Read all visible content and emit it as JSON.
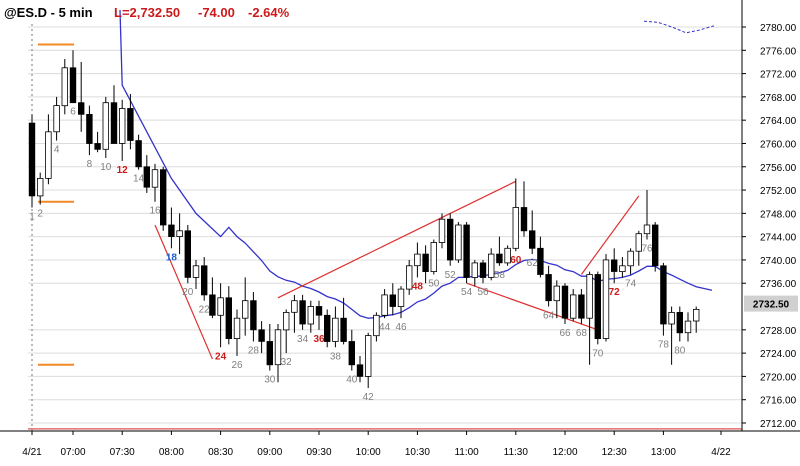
{
  "header": {
    "symbol": "@ES.D - 5 min",
    "last": "L=2,732.50",
    "change": "-74.00",
    "change_pct": "-2.64%"
  },
  "colors": {
    "background": "#ffffff",
    "grid": "#dcdcdc",
    "up_body": "#ffffff",
    "down_body": "#000000",
    "ema": "#3333cc",
    "trendline": "#e03030",
    "yesterday_level": "#f08a24",
    "bar_label_gray": "#808080",
    "bar_label_red": "#cc1a1a",
    "bar_label_blue": "#1f5fd6",
    "low_line": "#e07070",
    "price_tag_bg": "#d0d0d0"
  },
  "chart_data": {
    "type": "candlestick",
    "title": "@ES.D - 5 min",
    "ylim": [
      2710,
      2782
    ],
    "y_ticks": [
      "2780.00",
      "2776.00",
      "2772.00",
      "2768.00",
      "2764.00",
      "2760.00",
      "2756.00",
      "2752.00",
      "2748.00",
      "2744.00",
      "2740.00",
      "2736.00",
      "2732.50",
      "2728.00",
      "2724.00",
      "2720.00",
      "2716.00",
      "2712.00"
    ],
    "x_ticks": [
      "4/21",
      "07:00",
      "07:30",
      "08:00",
      "08:30",
      "09:00",
      "09:30",
      "10:00",
      "10:30",
      "11:00",
      "11:30",
      "12:00",
      "12:30",
      "13:00",
      "4/22"
    ],
    "last_price": "2732.50",
    "bars": [
      [
        2763.5,
        2765.0,
        2749.0,
        2751.0
      ],
      [
        2751.0,
        2755.0,
        2749.5,
        2754.0
      ],
      [
        2754.0,
        2765.0,
        2753.0,
        2762.0
      ],
      [
        2762.0,
        2768.0,
        2760.5,
        2766.5
      ],
      [
        2766.5,
        2774.5,
        2765.0,
        2773.0
      ],
      [
        2773.0,
        2776.0,
        2767.0,
        2767.0
      ],
      [
        2767.0,
        2774.0,
        2762.0,
        2765.0
      ],
      [
        2765.0,
        2766.5,
        2758.0,
        2760.0
      ],
      [
        2760.0,
        2762.0,
        2758.5,
        2759.0
      ],
      [
        2759.0,
        2768.0,
        2757.5,
        2767.0
      ],
      [
        2767.0,
        2770.0,
        2760.0,
        2760.0
      ],
      [
        2760.0,
        2767.5,
        2757.0,
        2766.0
      ],
      [
        2766.0,
        2768.5,
        2759.0,
        2760.5
      ],
      [
        2760.5,
        2761.5,
        2755.5,
        2756.0
      ],
      [
        2756.0,
        2758.0,
        2751.5,
        2752.5
      ],
      [
        2752.5,
        2756.5,
        2750.0,
        2755.5
      ],
      [
        2755.5,
        2756.0,
        2745.0,
        2746.0
      ],
      [
        2746.0,
        2749.0,
        2742.0,
        2744.0
      ],
      [
        2744.0,
        2748.0,
        2741.0,
        2745.0
      ],
      [
        2745.0,
        2746.0,
        2736.0,
        2737.0
      ],
      [
        2737.0,
        2740.0,
        2735.0,
        2739.0
      ],
      [
        2739.0,
        2740.5,
        2733.0,
        2734.0
      ],
      [
        2734.0,
        2737.0,
        2730.0,
        2730.5
      ],
      [
        2730.5,
        2736.0,
        2725.0,
        2733.5
      ],
      [
        2733.5,
        2735.5,
        2725.5,
        2726.5
      ],
      [
        2726.5,
        2731.5,
        2723.5,
        2730.0
      ],
      [
        2730.0,
        2737.0,
        2727.0,
        2733.0
      ],
      [
        2733.0,
        2734.5,
        2726.0,
        2728.0
      ],
      [
        2728.0,
        2729.5,
        2724.0,
        2726.0
      ],
      [
        2726.0,
        2729.0,
        2721.0,
        2722.0
      ],
      [
        2722.0,
        2729.0,
        2719.0,
        2728.0
      ],
      [
        2728.0,
        2731.5,
        2724.0,
        2731.0
      ],
      [
        2731.0,
        2734.0,
        2727.5,
        2733.0
      ],
      [
        2733.0,
        2734.0,
        2728.0,
        2729.0
      ],
      [
        2729.0,
        2733.0,
        2727.5,
        2732.0
      ],
      [
        2732.0,
        2733.0,
        2728.0,
        2730.5
      ],
      [
        2730.5,
        2731.5,
        2725.0,
        2726.0
      ],
      [
        2726.0,
        2732.0,
        2725.0,
        2730.0
      ],
      [
        2730.0,
        2733.5,
        2725.5,
        2726.0
      ],
      [
        2726.0,
        2728.0,
        2721.0,
        2722.0
      ],
      [
        2722.0,
        2723.5,
        2719.0,
        2720.0
      ],
      [
        2720.0,
        2727.5,
        2718.0,
        2727.0
      ],
      [
        2727.0,
        2731.0,
        2726.0,
        2730.5
      ],
      [
        2730.5,
        2735.0,
        2730.0,
        2734.0
      ],
      [
        2734.0,
        2736.0,
        2730.5,
        2732.0
      ],
      [
        2732.0,
        2735.5,
        2730.0,
        2735.0
      ],
      [
        2735.0,
        2740.0,
        2734.0,
        2739.0
      ],
      [
        2739.0,
        2743.0,
        2737.0,
        2741.0
      ],
      [
        2741.0,
        2742.5,
        2736.0,
        2738.0
      ],
      [
        2738.0,
        2743.5,
        2737.5,
        2743.0
      ],
      [
        2743.0,
        2748.0,
        2742.0,
        2747.0
      ],
      [
        2747.0,
        2748.0,
        2739.0,
        2740.0
      ],
      [
        2740.0,
        2746.5,
        2739.5,
        2746.0
      ],
      [
        2746.0,
        2746.5,
        2736.0,
        2737.0
      ],
      [
        2737.0,
        2740.0,
        2735.5,
        2739.5
      ],
      [
        2739.5,
        2740.0,
        2736.0,
        2737.0
      ],
      [
        2737.0,
        2742.0,
        2736.5,
        2741.0
      ],
      [
        2741.0,
        2744.0,
        2739.0,
        2739.5
      ],
      [
        2739.5,
        2742.5,
        2739.0,
        2742.0
      ],
      [
        2742.0,
        2754.0,
        2741.5,
        2749.0
      ],
      [
        2749.0,
        2753.5,
        2744.0,
        2745.0
      ],
      [
        2745.0,
        2748.5,
        2741.0,
        2742.0
      ],
      [
        2742.0,
        2744.0,
        2737.0,
        2737.5
      ],
      [
        2737.5,
        2739.0,
        2732.0,
        2733.0
      ],
      [
        2733.0,
        2736.5,
        2730.0,
        2735.5
      ],
      [
        2735.5,
        2736.0,
        2729.0,
        2730.0
      ],
      [
        2730.0,
        2735.0,
        2729.5,
        2734.0
      ],
      [
        2734.0,
        2735.0,
        2729.0,
        2730.0
      ],
      [
        2730.0,
        2738.0,
        2722.0,
        2737.5
      ],
      [
        2737.5,
        2738.0,
        2725.5,
        2726.5
      ],
      [
        2726.5,
        2741.0,
        2726.0,
        2740.0
      ],
      [
        2740.0,
        2742.0,
        2736.0,
        2738.0
      ],
      [
        2738.0,
        2740.5,
        2737.0,
        2739.0
      ],
      [
        2739.0,
        2742.0,
        2737.5,
        2741.5
      ],
      [
        2741.5,
        2745.0,
        2739.0,
        2744.5
      ],
      [
        2744.5,
        2752.0,
        2743.5,
        2746.0
      ],
      [
        2746.0,
        2746.5,
        2738.0,
        2739.0
      ],
      [
        2739.0,
        2739.5,
        2727.0,
        2729.0
      ],
      [
        2729.0,
        2732.0,
        2722.0,
        2731.0
      ],
      [
        2731.0,
        2732.0,
        2726.0,
        2727.5
      ],
      [
        2727.5,
        2731.0,
        2726.0,
        2729.5
      ],
      [
        2729.5,
        2732.0,
        2727.5,
        2731.5
      ]
    ],
    "ema": [
      2763.5,
      2762.2,
      2762.2,
      2762.6,
      2763.6,
      2764.0,
      2764.1,
      2763.7,
      2763.2,
      2763.6,
      2763.3,
      2763.6,
      2763.3,
      2762.6,
      2761.6,
      2761.0,
      2759.5,
      2757.9,
      2756.6,
      2754.7,
      2753.2,
      2751.4,
      2749.4,
      2747.7,
      2745.6,
      2744.0,
      2742.9,
      2741.4,
      2739.9,
      2738.1,
      2737.1,
      2736.5,
      2736.2,
      2735.5,
      2735.1,
      2734.5,
      2733.7,
      2733.3,
      2732.6,
      2731.5,
      2730.4,
      2730.0,
      2730.1,
      2730.4,
      2730.6,
      2731.0,
      2731.8,
      2732.8,
      2733.3,
      2734.3,
      2735.5,
      2736.0,
      2737.0,
      2737.0,
      2737.2,
      2737.2,
      2737.6,
      2737.8,
      2738.2,
      2739.2,
      2739.9,
      2740.1,
      2739.9,
      2739.4,
      2739.1,
      2738.3,
      2738.0,
      2737.2,
      2737.2,
      2736.3,
      2736.7,
      2736.8,
      2737.0,
      2737.4,
      2738.1,
      2738.9,
      2738.9,
      2738.0,
      2737.4,
      2736.7,
      2736.0,
      2735.4
    ],
    "bar_labels": [
      {
        "bar": 0,
        "text": "1",
        "style": "gray",
        "pos": "below"
      },
      {
        "bar": 1,
        "text": "2",
        "style": "gray",
        "pos": "below"
      },
      {
        "bar": 3,
        "text": "4",
        "style": "gray",
        "pos": "below"
      },
      {
        "bar": 5,
        "text": "6",
        "style": "gray",
        "pos": "below"
      },
      {
        "bar": 7,
        "text": "8",
        "style": "gray",
        "pos": "below"
      },
      {
        "bar": 9,
        "text": "10",
        "style": "gray",
        "pos": "below"
      },
      {
        "bar": 11,
        "text": "12",
        "style": "red",
        "pos": "below"
      },
      {
        "bar": 13,
        "text": "14",
        "style": "gray",
        "pos": "below"
      },
      {
        "bar": 15,
        "text": "16",
        "style": "gray",
        "pos": "below"
      },
      {
        "bar": 17,
        "text": "18",
        "style": "blue",
        "pos": "below"
      },
      {
        "bar": 19,
        "text": "20",
        "style": "gray",
        "pos": "below"
      },
      {
        "bar": 21,
        "text": "22",
        "style": "gray",
        "pos": "below"
      },
      {
        "bar": 23,
        "text": "24",
        "style": "red",
        "pos": "below"
      },
      {
        "bar": 25,
        "text": "26",
        "style": "gray",
        "pos": "below"
      },
      {
        "bar": 27,
        "text": "28",
        "style": "gray",
        "pos": "below"
      },
      {
        "bar": 29,
        "text": "30",
        "style": "gray",
        "pos": "below"
      },
      {
        "bar": 31,
        "text": "32",
        "style": "gray",
        "pos": "below"
      },
      {
        "bar": 33,
        "text": "34",
        "style": "gray",
        "pos": "below"
      },
      {
        "bar": 35,
        "text": "36",
        "style": "red",
        "pos": "below"
      },
      {
        "bar": 37,
        "text": "38",
        "style": "gray",
        "pos": "below"
      },
      {
        "bar": 39,
        "text": "40",
        "style": "gray",
        "pos": "below"
      },
      {
        "bar": 41,
        "text": "42",
        "style": "gray",
        "pos": "below"
      },
      {
        "bar": 43,
        "text": "44",
        "style": "gray",
        "pos": "below"
      },
      {
        "bar": 45,
        "text": "46",
        "style": "gray",
        "pos": "below"
      },
      {
        "bar": 47,
        "text": "48",
        "style": "red",
        "pos": "below"
      },
      {
        "bar": 49,
        "text": "50",
        "style": "gray",
        "pos": "below"
      },
      {
        "bar": 51,
        "text": "52",
        "style": "gray",
        "pos": "below"
      },
      {
        "bar": 53,
        "text": "54",
        "style": "gray",
        "pos": "below"
      },
      {
        "bar": 55,
        "text": "56",
        "style": "gray",
        "pos": "below"
      },
      {
        "bar": 57,
        "text": "58",
        "style": "gray",
        "pos": "below"
      },
      {
        "bar": 59,
        "text": "60",
        "style": "red",
        "pos": "below"
      },
      {
        "bar": 61,
        "text": "62",
        "style": "gray",
        "pos": "below"
      },
      {
        "bar": 63,
        "text": "64",
        "style": "gray",
        "pos": "below"
      },
      {
        "bar": 65,
        "text": "66",
        "style": "gray",
        "pos": "below"
      },
      {
        "bar": 67,
        "text": "68",
        "style": "gray",
        "pos": "below"
      },
      {
        "bar": 69,
        "text": "70",
        "style": "gray",
        "pos": "below"
      },
      {
        "bar": 71,
        "text": "72",
        "style": "red",
        "pos": "below"
      },
      {
        "bar": 73,
        "text": "74",
        "style": "gray",
        "pos": "below"
      },
      {
        "bar": 75,
        "text": "76",
        "style": "gray",
        "pos": "below"
      },
      {
        "bar": 77,
        "text": "78",
        "style": "gray",
        "pos": "below"
      },
      {
        "bar": 79,
        "text": "80",
        "style": "gray",
        "pos": "below"
      }
    ],
    "trendlines": [
      {
        "from": [
          15,
          2746.0
        ],
        "to": [
          22,
          2723.0
        ]
      },
      {
        "from": [
          30,
          2733.5
        ],
        "to": [
          59,
          2753.5
        ]
      },
      {
        "from": [
          53,
          2736.0
        ],
        "to": [
          69,
          2728.0
        ]
      },
      {
        "from": [
          67,
          2737.5
        ],
        "to": [
          74,
          2751.0
        ]
      }
    ],
    "yesterday_levels": [
      {
        "from": 0,
        "to": 5,
        "price": 2777.0
      },
      {
        "from": 0,
        "to": 5,
        "price": 2750.0
      },
      {
        "from": 0,
        "to": 5,
        "price": 2722.0
      }
    ],
    "prior_day_low": 2711.0,
    "dashed_projection": [
      2781.0,
      2780.8,
      2780.0,
      2779.0,
      2779.5,
      2780.2
    ]
  }
}
